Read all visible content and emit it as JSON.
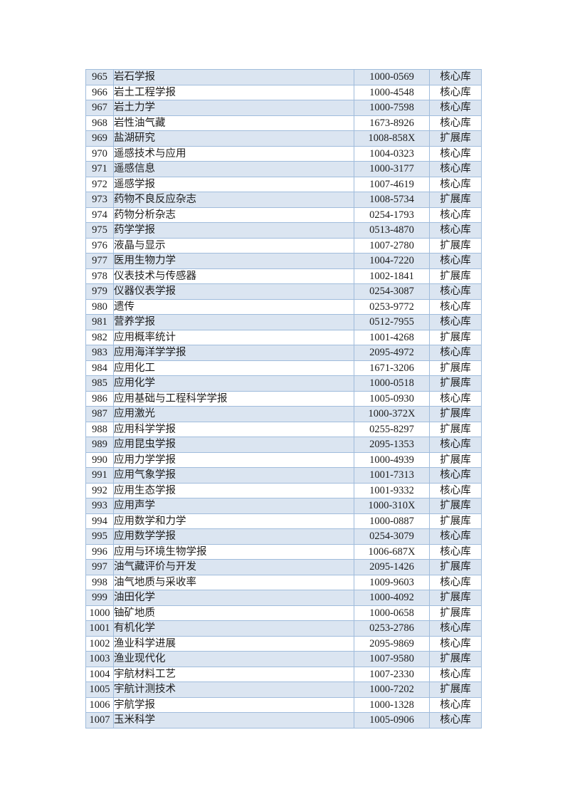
{
  "colors": {
    "band_fill": "#dbe5f1",
    "row_fill": "#ffffff",
    "border": "#a0bcdc",
    "text": "#1c1c1c"
  },
  "table": {
    "columns": [
      "number",
      "journal_name",
      "issn",
      "category"
    ],
    "category_values": [
      "核心库",
      "扩展库"
    ],
    "rows": [
      {
        "num": "965",
        "name": "岩石学报",
        "issn": "1000-0569",
        "category": "核心库"
      },
      {
        "num": "966",
        "name": "岩土工程学报",
        "issn": "1000-4548",
        "category": "核心库"
      },
      {
        "num": "967",
        "name": "岩土力学",
        "issn": "1000-7598",
        "category": "核心库"
      },
      {
        "num": "968",
        "name": "岩性油气藏",
        "issn": "1673-8926",
        "category": "核心库"
      },
      {
        "num": "969",
        "name": "盐湖研究",
        "issn": "1008-858X",
        "category": "扩展库"
      },
      {
        "num": "970",
        "name": "遥感技术与应用",
        "issn": "1004-0323",
        "category": "核心库"
      },
      {
        "num": "971",
        "name": "遥感信息",
        "issn": "1000-3177",
        "category": "核心库"
      },
      {
        "num": "972",
        "name": "遥感学报",
        "issn": "1007-4619",
        "category": "核心库"
      },
      {
        "num": "973",
        "name": "药物不良反应杂志",
        "issn": "1008-5734",
        "category": "扩展库"
      },
      {
        "num": "974",
        "name": "药物分析杂志",
        "issn": "0254-1793",
        "category": "核心库"
      },
      {
        "num": "975",
        "name": "药学学报",
        "issn": "0513-4870",
        "category": "核心库"
      },
      {
        "num": "976",
        "name": "液晶与显示",
        "issn": "1007-2780",
        "category": "扩展库"
      },
      {
        "num": "977",
        "name": "医用生物力学",
        "issn": "1004-7220",
        "category": "核心库"
      },
      {
        "num": "978",
        "name": "仪表技术与传感器",
        "issn": "1002-1841",
        "category": "扩展库"
      },
      {
        "num": "979",
        "name": "仪器仪表学报",
        "issn": "0254-3087",
        "category": "核心库"
      },
      {
        "num": "980",
        "name": "遗传",
        "issn": "0253-9772",
        "category": "核心库"
      },
      {
        "num": "981",
        "name": "营养学报",
        "issn": "0512-7955",
        "category": "核心库"
      },
      {
        "num": "982",
        "name": "应用概率统计",
        "issn": "1001-4268",
        "category": "扩展库"
      },
      {
        "num": "983",
        "name": "应用海洋学学报",
        "issn": "2095-4972",
        "category": "核心库"
      },
      {
        "num": "984",
        "name": "应用化工",
        "issn": "1671-3206",
        "category": "扩展库"
      },
      {
        "num": "985",
        "name": "应用化学",
        "issn": "1000-0518",
        "category": "扩展库"
      },
      {
        "num": "986",
        "name": "应用基础与工程科学学报",
        "issn": "1005-0930",
        "category": "核心库"
      },
      {
        "num": "987",
        "name": "应用激光",
        "issn": "1000-372X",
        "category": "扩展库"
      },
      {
        "num": "988",
        "name": "应用科学学报",
        "issn": "0255-8297",
        "category": "扩展库"
      },
      {
        "num": "989",
        "name": "应用昆虫学报",
        "issn": "2095-1353",
        "category": "核心库"
      },
      {
        "num": "990",
        "name": "应用力学学报",
        "issn": "1000-4939",
        "category": "扩展库"
      },
      {
        "num": "991",
        "name": "应用气象学报",
        "issn": "1001-7313",
        "category": "核心库"
      },
      {
        "num": "992",
        "name": "应用生态学报",
        "issn": "1001-9332",
        "category": "核心库"
      },
      {
        "num": "993",
        "name": "应用声学",
        "issn": "1000-310X",
        "category": "扩展库"
      },
      {
        "num": "994",
        "name": "应用数学和力学",
        "issn": "1000-0887",
        "category": "扩展库"
      },
      {
        "num": "995",
        "name": "应用数学学报",
        "issn": "0254-3079",
        "category": "核心库"
      },
      {
        "num": "996",
        "name": "应用与环境生物学报",
        "issn": "1006-687X",
        "category": "核心库"
      },
      {
        "num": "997",
        "name": "油气藏评价与开发",
        "issn": "2095-1426",
        "category": "扩展库"
      },
      {
        "num": "998",
        "name": "油气地质与采收率",
        "issn": "1009-9603",
        "category": "核心库"
      },
      {
        "num": "999",
        "name": "油田化学",
        "issn": "1000-4092",
        "category": "扩展库"
      },
      {
        "num": "1000",
        "name": "铀矿地质",
        "issn": "1000-0658",
        "category": "扩展库"
      },
      {
        "num": "1001",
        "name": "有机化学",
        "issn": "0253-2786",
        "category": "核心库"
      },
      {
        "num": "1002",
        "name": "渔业科学进展",
        "issn": "2095-9869",
        "category": "核心库"
      },
      {
        "num": "1003",
        "name": "渔业现代化",
        "issn": "1007-9580",
        "category": "扩展库"
      },
      {
        "num": "1004",
        "name": "宇航材料工艺",
        "issn": "1007-2330",
        "category": "核心库"
      },
      {
        "num": "1005",
        "name": "宇航计测技术",
        "issn": "1000-7202",
        "category": "扩展库"
      },
      {
        "num": "1006",
        "name": "宇航学报",
        "issn": "1000-1328",
        "category": "核心库"
      },
      {
        "num": "1007",
        "name": "玉米科学",
        "issn": "1005-0906",
        "category": "核心库"
      }
    ]
  }
}
